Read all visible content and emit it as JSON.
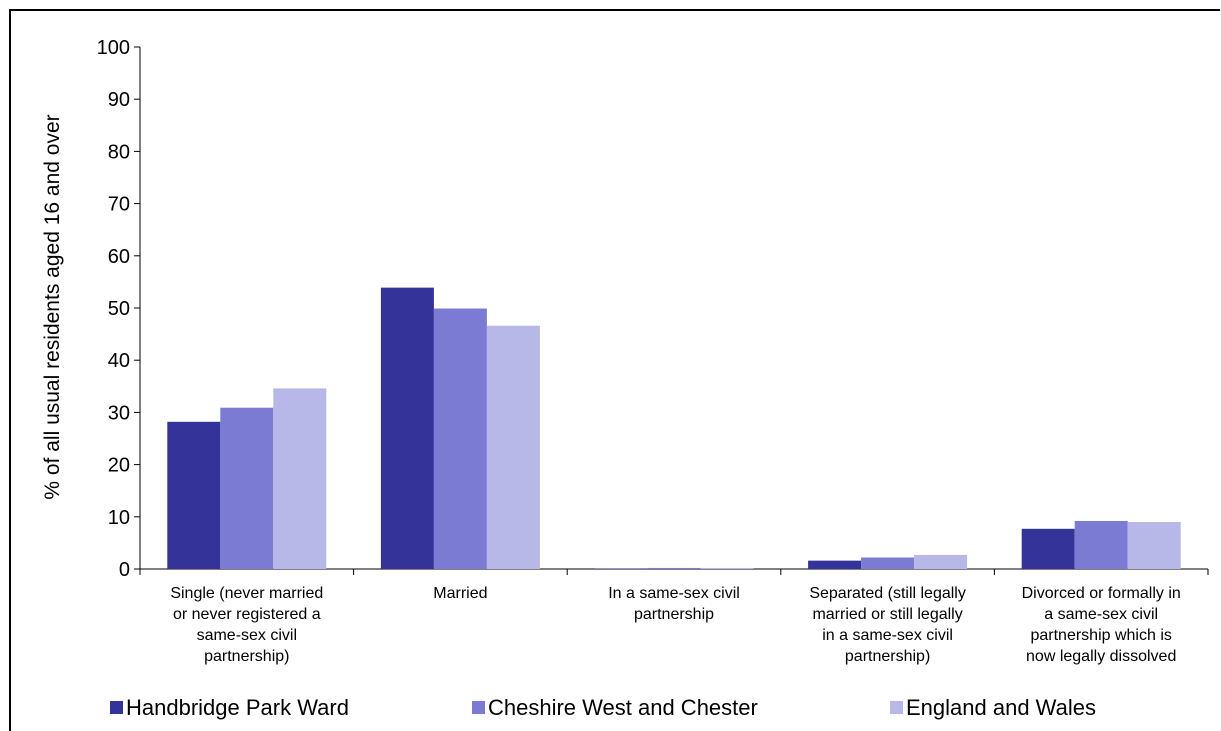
{
  "chart_data": {
    "type": "bar",
    "title": "",
    "ylabel": "% of all usual residents aged 16 and over",
    "xlabel": "",
    "ylim": [
      0,
      100
    ],
    "yticks": [
      0,
      10,
      20,
      30,
      40,
      50,
      60,
      70,
      80,
      90,
      100
    ],
    "grid": false,
    "legend_position": "bottom",
    "categories": [
      [
        "Single (never married",
        "or never registered a",
        "same-sex civil",
        "partnership)"
      ],
      [
        "Married"
      ],
      [
        "In a same-sex civil",
        "partnership"
      ],
      [
        "Separated (still legally",
        "married or still legally",
        "in a same-sex civil",
        "partnership)"
      ],
      [
        "Divorced or formally in",
        "a same-sex civil",
        "partnership which is",
        "now legally dissolved"
      ]
    ],
    "series": [
      {
        "name": "Handbridge Park Ward",
        "color": "#333399",
        "values": [
          28.2,
          53.9,
          0.1,
          1.6,
          7.7
        ]
      },
      {
        "name": "Cheshire West and Chester",
        "color": "#7b7bd3",
        "values": [
          30.9,
          49.9,
          0.2,
          2.2,
          9.2
        ]
      },
      {
        "name": "England and Wales",
        "color": "#b8b8e8",
        "values": [
          34.6,
          46.6,
          0.2,
          2.7,
          9.0
        ]
      }
    ]
  }
}
